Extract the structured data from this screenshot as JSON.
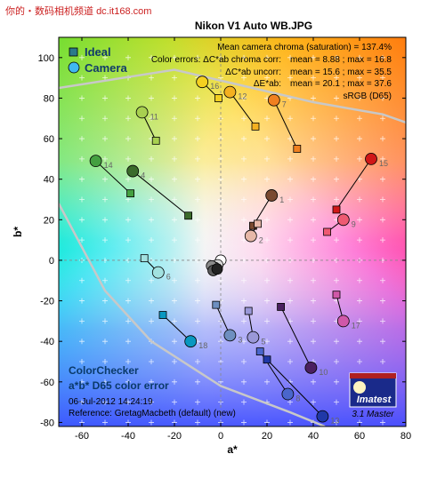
{
  "watermark": {
    "text": "你的・数码相机频道",
    "site": "dc.it168.com"
  },
  "chart_data": {
    "type": "scatter",
    "title": "Nikon V1 Auto WB.JPG",
    "xlabel": "a*",
    "ylabel": "b*",
    "xlim": [
      -70,
      80
    ],
    "ylim": [
      -82,
      110
    ],
    "xticks": [
      -60,
      -40,
      -20,
      0,
      20,
      40,
      60,
      80
    ],
    "yticks": [
      -80,
      -60,
      -40,
      -20,
      0,
      20,
      40,
      60,
      80,
      100
    ],
    "legend": {
      "position": "top-left",
      "ideal_label": "Ideal",
      "camera_label": "Camera"
    },
    "stats": {
      "line1": "Mean camera chroma (saturation) = 137.4%",
      "line2_label": "Color errors: ΔC*ab chroma corr:",
      "line2_value": "mean = 8.88 ;  max = 16.8",
      "line3_label": "ΔC*ab uncorr:",
      "line3_value": "mean = 15.6 ;  max = 35.5",
      "line4_label": "ΔE*ab:",
      "line4_value": "mean = 20.1 ;  max = 37.6",
      "line5": "sRGB (D65)"
    },
    "footer": {
      "line1": "ColorChecker",
      "line2": "a*b* D65 color error",
      "line3": "06-Jul-2012 14:24:19",
      "line4": "Reference: GretagMacbeth (default) (new)"
    },
    "logo": {
      "name": "Imatest",
      "version": "3.1  Master"
    },
    "patches": [
      {
        "id": "1",
        "ideal": [
          14,
          17
        ],
        "camera": [
          22,
          32
        ],
        "color": "#7a4a30"
      },
      {
        "id": "2",
        "ideal": [
          16,
          18
        ],
        "camera": [
          13,
          12
        ],
        "color": "#e7b8a8"
      },
      {
        "id": "3",
        "ideal": [
          -2,
          -22
        ],
        "camera": [
          4,
          -37
        ],
        "color": "#6e8fc0"
      },
      {
        "id": "4",
        "ideal": [
          -14,
          22
        ],
        "camera": [
          -38,
          44
        ],
        "color": "#3b6b2b"
      },
      {
        "id": "5",
        "ideal": [
          12,
          -25
        ],
        "camera": [
          14,
          -38
        ],
        "color": "#9a98d8"
      },
      {
        "id": "6",
        "ideal": [
          -33,
          1
        ],
        "camera": [
          -27,
          -6
        ],
        "color": "#a2e2e0"
      },
      {
        "id": "7",
        "ideal": [
          33,
          55
        ],
        "camera": [
          23,
          79
        ],
        "color": "#f08020"
      },
      {
        "id": "8",
        "ideal": [
          17,
          -45
        ],
        "camera": [
          29,
          -66
        ],
        "color": "#4a66cc"
      },
      {
        "id": "9",
        "ideal": [
          46,
          14
        ],
        "camera": [
          53,
          20
        ],
        "color": "#ee5a72"
      },
      {
        "id": "10",
        "ideal": [
          26,
          -23
        ],
        "camera": [
          39,
          -53
        ],
        "color": "#4a2060"
      },
      {
        "id": "11",
        "ideal": [
          -28,
          59
        ],
        "camera": [
          -34,
          73
        ],
        "color": "#a8d050"
      },
      {
        "id": "12",
        "ideal": [
          15,
          66
        ],
        "camera": [
          4,
          83
        ],
        "color": "#f4b020"
      },
      {
        "id": "13",
        "ideal": [
          20,
          -49
        ],
        "camera": [
          44,
          -77
        ],
        "color": "#2038a8"
      },
      {
        "id": "14",
        "ideal": [
          -39,
          33
        ],
        "camera": [
          -54,
          49
        ],
        "color": "#44a040"
      },
      {
        "id": "15",
        "ideal": [
          50,
          25
        ],
        "camera": [
          65,
          50
        ],
        "color": "#d01818"
      },
      {
        "id": "16",
        "ideal": [
          -1,
          80
        ],
        "camera": [
          -8,
          88
        ],
        "color": "#f4d020"
      },
      {
        "id": "17",
        "ideal": [
          50,
          -17
        ],
        "camera": [
          53,
          -30
        ],
        "color": "#d058a8"
      },
      {
        "id": "18",
        "ideal": [
          -25,
          -27
        ],
        "camera": [
          -13,
          -40
        ],
        "color": "#0a98c0"
      }
    ],
    "neutral_camera": [
      {
        "a": 0,
        "b": 0,
        "color": "#ffffff"
      },
      {
        "a": -1,
        "b": -2,
        "color": "#d8d8d8"
      },
      {
        "a": -2,
        "b": -3,
        "color": "#b4b4b4"
      },
      {
        "a": -3,
        "b": -2,
        "color": "#8a8a8a"
      },
      {
        "a": -2,
        "b": -4,
        "color": "#5a5a5a"
      },
      {
        "a": 0,
        "b": -3,
        "color": "#222222"
      }
    ],
    "gamut_upper": [
      [
        -70,
        85
      ],
      [
        -20,
        94
      ],
      [
        40,
        78
      ],
      [
        70,
        72
      ],
      [
        80,
        68
      ]
    ],
    "gamut_lower": [
      [
        -70,
        28
      ],
      [
        -50,
        -15
      ],
      [
        -30,
        -40
      ],
      [
        0,
        -62
      ],
      [
        30,
        -75
      ],
      [
        45,
        -82
      ]
    ]
  }
}
